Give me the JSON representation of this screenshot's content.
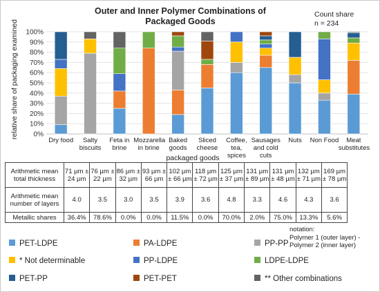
{
  "chart_data": {
    "type": "bar",
    "stacked": true,
    "title": "Outer and Inner Polymer Combinations of Packaged Goods",
    "count_label": "Count share",
    "count_value": "n = 234",
    "ylabel": "relative share of packaging examined",
    "xlabel": "packaged goods",
    "ylim": [
      0,
      100
    ],
    "yticks": [
      "0%",
      "10%",
      "20%",
      "30%",
      "40%",
      "50%",
      "60%",
      "70%",
      "80%",
      "90%",
      "100%"
    ],
    "categories": [
      "Dry food",
      "Salty biscuits",
      "Feta in brine",
      "Mozzarella in brine",
      "Baked goods",
      "Sliced cheese",
      "Coffee, tea, spices",
      "Sausages and cold cuts",
      "Nuts",
      "Non Food",
      "Meat substitutes"
    ],
    "series": [
      {
        "name": "PET-LDPE",
        "color": "#5b9bd5",
        "values": [
          9,
          0,
          25,
          0,
          19,
          45,
          60,
          65,
          50,
          33,
          39
        ]
      },
      {
        "name": "PA-LDPE",
        "color": "#ed7d31",
        "values": [
          0,
          0,
          17,
          84,
          24,
          23,
          0,
          12,
          0,
          0,
          33
        ]
      },
      {
        "name": "PP-PP",
        "color": "#a5a5a5",
        "values": [
          28,
          79,
          0,
          0,
          38,
          0,
          10,
          0,
          8,
          7,
          0
        ]
      },
      {
        "name": "* Not determinable",
        "color": "#ffc000",
        "values": [
          27,
          14,
          0,
          0,
          0,
          0,
          20,
          7,
          17,
          13,
          17
        ]
      },
      {
        "name": "PP-LDPE",
        "color": "#4472c4",
        "values": [
          9,
          0,
          17,
          0,
          4,
          0,
          10,
          4,
          0,
          40,
          0
        ]
      },
      {
        "name": "LDPE-LDPE",
        "color": "#70ad47",
        "values": [
          0,
          0,
          25,
          16,
          11,
          5,
          0,
          4,
          0,
          7,
          5
        ]
      },
      {
        "name": "PET-PP",
        "color": "#255e91",
        "values": [
          27,
          0,
          0,
          0,
          0,
          0,
          0,
          4,
          25,
          0,
          5
        ]
      },
      {
        "name": "PET-PET",
        "color": "#9e480e",
        "values": [
          0,
          0,
          0,
          0,
          4,
          18,
          0,
          4,
          0,
          0,
          0
        ]
      },
      {
        "name": "** Other combinations",
        "color": "#636363",
        "values": [
          0,
          7,
          16,
          0,
          0,
          9,
          0,
          0,
          0,
          0,
          1
        ]
      }
    ]
  },
  "table": {
    "rows": [
      {
        "label": "Arithmetic mean total thickness",
        "cells": [
          "71 µm ± 24 µm",
          "76 µm ± 22 µm",
          "86 µm ± 32 µm",
          "93 µm ± 66 µm",
          "102 µm ± 66 µm",
          "118 µm ± 72 µm",
          "125 µm ± 37 µm",
          "131 µm ± 89 µm",
          "131 µm ± 48 µm",
          "132 µm ± 71 µm",
          "169 µm ± 78 µm"
        ]
      },
      {
        "label": "Arithmetic mean number of layers",
        "cells": [
          "4.0",
          "3.5",
          "3.0",
          "3.5",
          "3.9",
          "3.6",
          "4.8",
          "3.3",
          "4.6",
          "4.3",
          "3.6"
        ]
      },
      {
        "label": "Metallic shares",
        "cells": [
          "36.4%",
          "78.6%",
          "0.0%",
          "0.0%",
          "11.5%",
          "0.0%",
          "70.0%",
          "2.0%",
          "75.0%",
          "13.3%",
          "5.6%"
        ]
      }
    ]
  },
  "notation": {
    "line1": "notation:",
    "line2": "Polymer 1 (outer layer) -",
    "line3": "Polymer 2 (inner layer)"
  }
}
